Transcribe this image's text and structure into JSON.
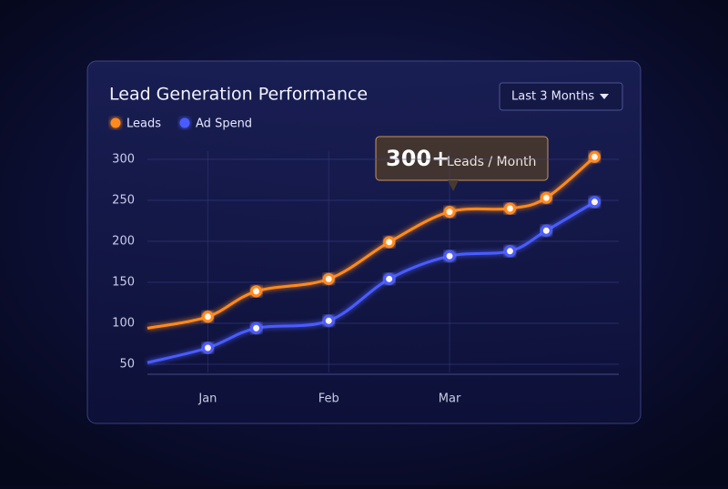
{
  "filter": "Last 3 Months",
  "chart_data": {
    "type": "line",
    "title": "Lead Generation Performance",
    "x": [
      0.5,
      1.0,
      1.4,
      2.0,
      2.5,
      3.0,
      3.5,
      3.8,
      4.2
    ],
    "series": [
      {
        "name": "Leads",
        "color": "#ff8a1c",
        "values": [
          94,
          108,
          139,
          154,
          199,
          236,
          240,
          253,
          303
        ]
      },
      {
        "name": "Ad Spend",
        "color": "#4a5cff",
        "values": [
          52,
          70,
          94,
          103,
          154,
          182,
          188,
          213,
          248
        ]
      }
    ],
    "xlim": [
      0.5,
      4.4
    ],
    "xticks": [
      {
        "value": 1,
        "label": "Jan"
      },
      {
        "value": 2,
        "label": "Feb"
      },
      {
        "value": 3,
        "label": "Mar"
      }
    ],
    "ylim": [
      40,
      310
    ],
    "yticks": [
      50,
      100,
      150,
      200,
      250,
      300
    ],
    "grid": true,
    "annotation": {
      "highlight": "300+",
      "text": "Leads / Month"
    }
  }
}
